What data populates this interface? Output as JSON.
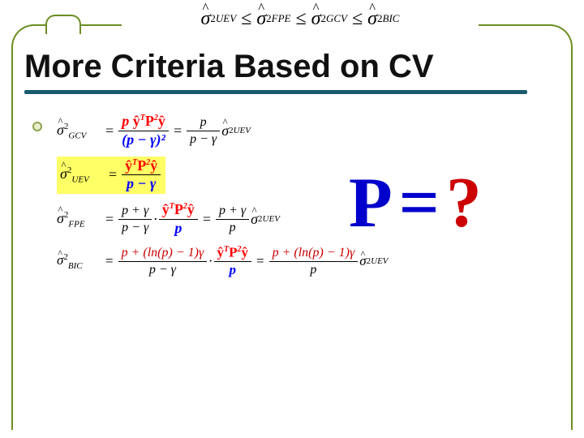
{
  "inequality": {
    "terms": [
      "σ̂²_UEV",
      "σ̂²_FPE",
      "σ̂²_GCV",
      "σ̂²_BIC"
    ],
    "subscripts": [
      "UEV",
      "FPE",
      "GCV",
      "BIC"
    ],
    "op": "≤"
  },
  "title": "More Criteria Based on CV",
  "colors": {
    "frame": "#6b8e23",
    "underline": "#1a5a6e",
    "highlight_bg": "#ffff66",
    "num_color": "#ff0000",
    "den_color": "#0000ff",
    "big_p_color": "#0000cc",
    "big_q_color": "#cc0000"
  },
  "fonts": {
    "title_size": 40,
    "formula_size": 18,
    "big_size": 88,
    "family_serif": "Times New Roman"
  },
  "formulas": {
    "gcv": {
      "lhs_sub": "GCV",
      "main_num": "p ŷᵀP²ŷ",
      "main_den": "(p − γ)²",
      "simplified_num": "p",
      "simplified_den": "p − γ",
      "rhs_sub": "UEV"
    },
    "uev": {
      "lhs_sub": "UEV",
      "main_num": "ŷᵀP²ŷ",
      "main_den": "p − γ"
    },
    "fpe": {
      "lhs_sub": "FPE",
      "coef_num": "p + γ",
      "coef_den": "p − γ",
      "kernel_num": "ŷᵀP²ŷ",
      "kernel_den": "p",
      "simplified_num": "p + γ",
      "simplified_den": "p",
      "rhs_sub": "UEV"
    },
    "bic": {
      "lhs_sub": "BIC",
      "coef_num": "p + (ln(p) − 1)γ",
      "coef_den": "p − γ",
      "kernel_num": "ŷᵀP²ŷ",
      "kernel_den": "p",
      "simplified_num": "p + (ln(p) − 1)γ",
      "simplified_den": "p",
      "rhs_sub": "UEV"
    }
  },
  "big_question": {
    "left": "P",
    "mid": "=",
    "right": "?"
  }
}
